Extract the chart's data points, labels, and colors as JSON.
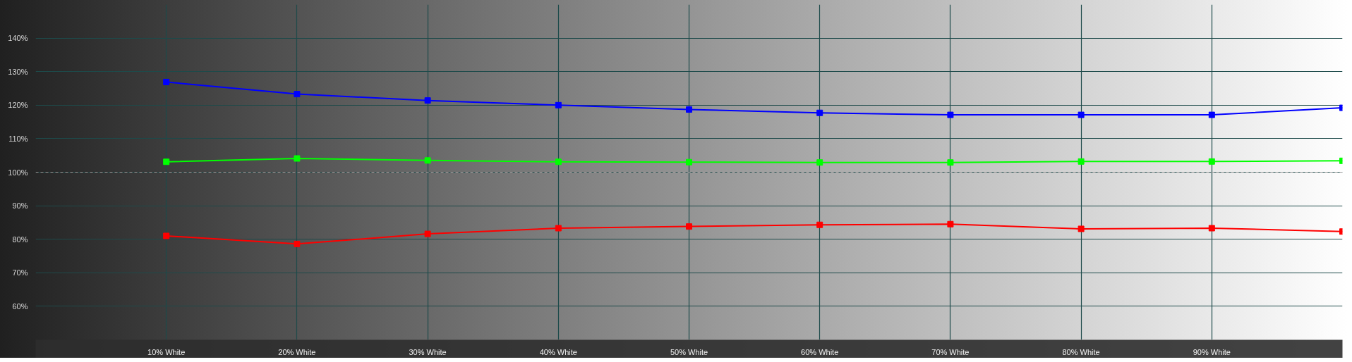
{
  "chart_data": {
    "type": "line",
    "x": [
      10,
      20,
      30,
      40,
      50,
      60,
      70,
      80,
      90,
      100
    ],
    "series": [
      {
        "color": "#0000ff",
        "values": [
          126.9,
          123.3,
          121.4,
          120.0,
          118.7,
          117.7,
          117.1,
          117.1,
          117.1,
          119.2
        ]
      },
      {
        "color": "#00ff00",
        "values": [
          103.1,
          104.1,
          103.5,
          103.1,
          103.0,
          102.9,
          102.9,
          103.2,
          103.2,
          103.4
        ]
      },
      {
        "color": "#ff0000",
        "values": [
          81.0,
          78.6,
          81.6,
          83.3,
          83.8,
          84.3,
          84.5,
          83.1,
          83.3,
          82.3
        ]
      }
    ],
    "xlim": [
      0,
      100
    ],
    "ylim": [
      50,
      150
    ],
    "xticks": [
      {
        "value": 10,
        "label": "10% White"
      },
      {
        "value": 20,
        "label": "20% White"
      },
      {
        "value": 30,
        "label": "30% White"
      },
      {
        "value": 40,
        "label": "40% White"
      },
      {
        "value": 50,
        "label": "50% White"
      },
      {
        "value": 60,
        "label": "60% White"
      },
      {
        "value": 70,
        "label": "70% White"
      },
      {
        "value": 80,
        "label": "80% White"
      },
      {
        "value": 90,
        "label": "90% White"
      }
    ],
    "yticks": [
      {
        "value": 60,
        "label": "60%"
      },
      {
        "value": 70,
        "label": "70%"
      },
      {
        "value": 80,
        "label": "80%"
      },
      {
        "value": 90,
        "label": "90%"
      },
      {
        "value": 100,
        "label": "100%"
      },
      {
        "value": 110,
        "label": "110%"
      },
      {
        "value": 120,
        "label": "120%"
      },
      {
        "value": 130,
        "label": "130%"
      },
      {
        "value": 140,
        "label": "140%"
      }
    ],
    "ref_lines": [
      {
        "axis": "y",
        "value": 100,
        "color": "#9a9a9a",
        "line_style": "dashed"
      }
    ],
    "grid": true,
    "marker": "square",
    "line_style": "solid"
  }
}
